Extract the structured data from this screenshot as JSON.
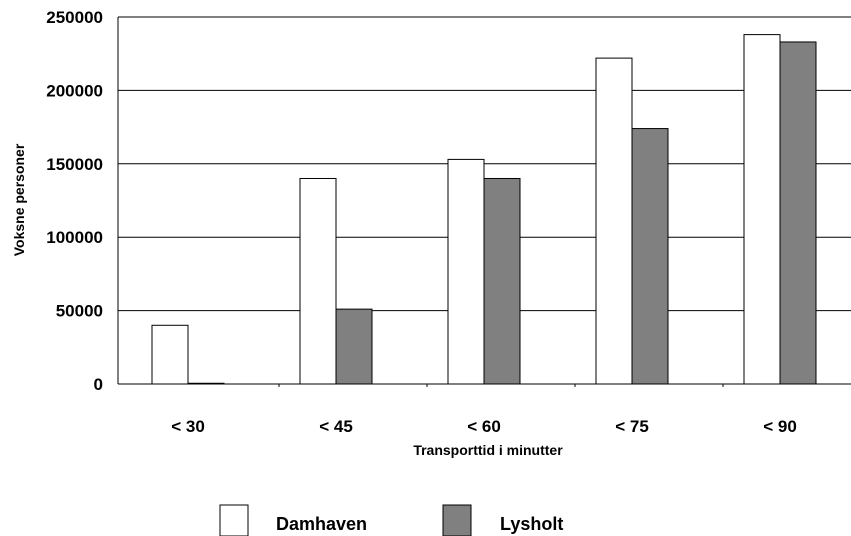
{
  "chart_data": {
    "type": "bar",
    "title": "",
    "xlabel": "Transporttid i minutter",
    "ylabel": "Voksne personer",
    "categories": [
      "< 30",
      "< 45",
      "< 60",
      "< 75",
      "< 90"
    ],
    "ylim": [
      0,
      250000
    ],
    "yticks": [
      0,
      50000,
      100000,
      150000,
      200000,
      250000
    ],
    "ytick_labels": [
      "0",
      "50000",
      "100000",
      "150000",
      "200000",
      "250000"
    ],
    "grid": "horizontal",
    "legend_position": "bottom",
    "series": [
      {
        "name": "Damhaven",
        "color": "#ffffff",
        "values": [
          40000,
          140000,
          153000,
          222000,
          238000
        ]
      },
      {
        "name": "Lysholt",
        "color": "#808080",
        "values": [
          500,
          51000,
          140000,
          174000,
          233000
        ]
      }
    ]
  }
}
